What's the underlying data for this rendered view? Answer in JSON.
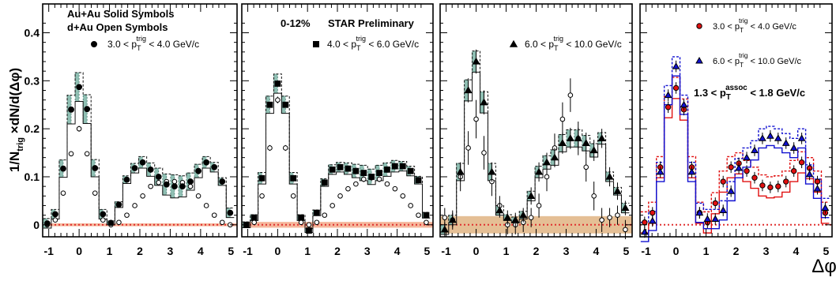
{
  "figure": {
    "y_axis_title": "1/N",
    "y_axis_title_sub": "trig",
    "y_axis_title_rest": " ×dN/d(Δφ)",
    "x_axis_title": "Δφ"
  },
  "colors": {
    "band_teal": "#8fbfb3",
    "band_orange": "#e0b483",
    "band_salmon": "#f3a98a",
    "zero_line": "#e03030",
    "red": "#e01010",
    "blue": "#1010d0",
    "black": "#000000"
  },
  "chart_data": [
    {
      "type": "scatter",
      "panel": 1,
      "xlim": [
        -1.2,
        5.2
      ],
      "ylim": [
        -0.025,
        0.46
      ],
      "yticks": [
        0,
        0.1,
        0.2,
        0.3,
        0.4
      ],
      "ytick_labels": [
        "0",
        "0.1",
        "0.2",
        "0.3",
        "0.4"
      ],
      "xticks": [
        -1,
        0,
        1,
        2,
        3,
        4,
        5
      ],
      "xtick_labels": [
        "-1",
        "0",
        "1",
        "2",
        "3",
        "4",
        "5"
      ],
      "texts": [
        "Au+Au Solid Symbols",
        "d+Au Open Symbols"
      ],
      "legend": {
        "symbol": "circle",
        "lo": "3.0",
        "hi": "4.0",
        "var": "p",
        "sub": "T",
        "sup": "trig",
        "unit": "GeV/c"
      },
      "x": [
        -1.047,
        -0.785,
        -0.524,
        -0.262,
        0.0,
        0.262,
        0.524,
        0.785,
        1.047,
        1.309,
        1.571,
        1.833,
        2.094,
        2.356,
        2.618,
        2.88,
        3.142,
        3.403,
        3.665,
        3.927,
        4.189,
        4.451,
        4.712,
        4.974
      ],
      "auau": [
        0.003,
        0.022,
        0.117,
        0.24,
        0.287,
        0.241,
        0.118,
        0.022,
        0.004,
        0.042,
        0.094,
        0.118,
        0.13,
        0.115,
        0.1,
        0.084,
        0.08,
        0.08,
        0.09,
        0.112,
        0.13,
        0.12,
        0.09,
        0.025
      ],
      "dau": [
        0.0,
        0.01,
        0.066,
        0.148,
        0.2,
        0.148,
        0.066,
        0.01,
        0.0,
        0.005,
        0.02,
        0.04,
        0.06,
        0.08,
        0.088,
        0.09,
        0.09,
        0.088,
        0.08,
        0.06,
        0.04,
        0.02,
        0.005,
        0.0
      ],
      "dau_errors": [
        0.004,
        0.004,
        0.005,
        0.005,
        0.006,
        0.005,
        0.005,
        0.004,
        0.004,
        0.004,
        0.004,
        0.004,
        0.005,
        0.005,
        0.005,
        0.005,
        0.005,
        0.005,
        0.005,
        0.005,
        0.004,
        0.004,
        0.004,
        0.004
      ],
      "sys_band": [
        0.01,
        0.01,
        0.018,
        0.03,
        0.03,
        0.03,
        0.018,
        0.01,
        0.004,
        0.006,
        0.008,
        0.01,
        0.012,
        0.014,
        0.018,
        0.022,
        0.024,
        0.022,
        0.018,
        0.014,
        0.012,
        0.01,
        0.008,
        0.01
      ],
      "zero_band": 0.003
    },
    {
      "type": "scatter",
      "panel": 2,
      "xlim": [
        -1.2,
        5.2
      ],
      "ylim": [
        -0.025,
        0.46
      ],
      "xticks": [
        -1,
        0,
        1,
        2,
        3,
        4,
        5
      ],
      "xtick_labels": [
        "-1",
        "0",
        "1",
        "2",
        "3",
        "4",
        "5"
      ],
      "texts": [
        "0-12%",
        "STAR Preliminary"
      ],
      "legend": {
        "symbol": "square",
        "lo": "4.0",
        "hi": "6.0",
        "var": "p",
        "sub": "T",
        "sup": "trig",
        "unit": "GeV/c"
      },
      "x": [
        -1.047,
        -0.785,
        -0.524,
        -0.262,
        0.0,
        0.262,
        0.524,
        0.785,
        1.047,
        1.309,
        1.571,
        1.833,
        2.094,
        2.356,
        2.618,
        2.88,
        3.142,
        3.403,
        3.665,
        3.927,
        4.189,
        4.451,
        4.712,
        4.974
      ],
      "auau": [
        0.0,
        0.015,
        0.097,
        0.25,
        0.294,
        0.25,
        0.097,
        0.015,
        -0.012,
        0.025,
        0.088,
        0.115,
        0.12,
        0.117,
        0.112,
        0.108,
        0.1,
        0.108,
        0.115,
        0.122,
        0.122,
        0.112,
        0.093,
        0.02
      ],
      "dau": [
        0.0,
        0.005,
        0.06,
        0.16,
        0.26,
        0.16,
        0.06,
        0.005,
        0.0,
        0.005,
        0.02,
        0.04,
        0.06,
        0.075,
        0.085,
        0.095,
        0.098,
        0.095,
        0.085,
        0.075,
        0.06,
        0.04,
        0.02,
        0.005
      ],
      "dau_errors": [
        0.004,
        0.004,
        0.005,
        0.006,
        0.007,
        0.006,
        0.005,
        0.004,
        0.004,
        0.004,
        0.004,
        0.005,
        0.005,
        0.005,
        0.005,
        0.006,
        0.006,
        0.006,
        0.005,
        0.005,
        0.005,
        0.004,
        0.004,
        0.004
      ],
      "sys_band": [
        0.006,
        0.006,
        0.012,
        0.018,
        0.02,
        0.018,
        0.012,
        0.006,
        0.004,
        0.006,
        0.008,
        0.01,
        0.01,
        0.012,
        0.014,
        0.016,
        0.016,
        0.016,
        0.014,
        0.012,
        0.01,
        0.01,
        0.008,
        0.006
      ],
      "zero_band": 0.006
    },
    {
      "type": "scatter",
      "panel": 3,
      "xlim": [
        -1.2,
        5.2
      ],
      "ylim": [
        -0.025,
        0.46
      ],
      "xticks": [
        -1,
        0,
        1,
        2,
        3,
        4,
        5
      ],
      "xtick_labels": [
        "-1",
        "0",
        "1",
        "2",
        "3",
        "4",
        "5"
      ],
      "texts": [],
      "legend": {
        "symbol": "triangle",
        "lo": "6.0",
        "hi": "10.0",
        "var": "p",
        "sub": "T",
        "sup": "trig",
        "unit": "GeV/c"
      },
      "x": [
        -1.047,
        -0.785,
        -0.524,
        -0.262,
        0.0,
        0.262,
        0.524,
        0.785,
        1.047,
        1.309,
        1.571,
        1.833,
        2.094,
        2.356,
        2.618,
        2.88,
        3.142,
        3.403,
        3.665,
        3.927,
        4.189,
        4.451,
        4.712,
        4.974
      ],
      "auau": [
        -0.01,
        0.01,
        0.11,
        0.28,
        0.34,
        0.255,
        0.11,
        0.03,
        0.015,
        0.01,
        0.02,
        0.06,
        0.11,
        0.13,
        0.14,
        0.17,
        0.18,
        0.18,
        0.17,
        0.155,
        0.18,
        0.1,
        0.07,
        0.035
      ],
      "dau": [
        0.015,
        0.01,
        0.1,
        0.16,
        0.22,
        0.15,
        0.09,
        0.04,
        0.0,
        0.0,
        0.005,
        0.015,
        0.04,
        0.1,
        0.16,
        0.22,
        0.27,
        0.18,
        0.12,
        0.06,
        0.01,
        0.015,
        0.02,
        -0.01
      ],
      "auau_errors": [
        0.015,
        0.015,
        0.02,
        0.025,
        0.025,
        0.025,
        0.02,
        0.015,
        0.015,
        0.015,
        0.015,
        0.018,
        0.02,
        0.02,
        0.02,
        0.022,
        0.022,
        0.022,
        0.022,
        0.022,
        0.02,
        0.02,
        0.018,
        0.015
      ],
      "dau_errors": [
        0.02,
        0.02,
        0.03,
        0.035,
        0.04,
        0.035,
        0.03,
        0.02,
        0.02,
        0.02,
        0.02,
        0.02,
        0.025,
        0.03,
        0.03,
        0.035,
        0.035,
        0.035,
        0.03,
        0.03,
        0.025,
        0.02,
        0.02,
        0.02
      ],
      "sys_band": [
        0.01,
        0.01,
        0.018,
        0.022,
        0.022,
        0.022,
        0.018,
        0.01,
        0.006,
        0.006,
        0.008,
        0.01,
        0.012,
        0.014,
        0.016,
        0.018,
        0.018,
        0.018,
        0.016,
        0.014,
        0.012,
        0.01,
        0.008,
        0.01
      ],
      "zero_band": 0.018
    },
    {
      "type": "line",
      "panel": 4,
      "xlim": [
        -1.2,
        5.2
      ],
      "ylim": [
        -0.025,
        0.46
      ],
      "xticks": [
        -1,
        0,
        1,
        2,
        3,
        4,
        5
      ],
      "xtick_labels": [
        "-1",
        "0",
        "1",
        "2",
        "3",
        "4",
        "5"
      ],
      "legend_entries": [
        {
          "symbol": "circle",
          "color": "red",
          "lo": "3.0",
          "hi": "4.0",
          "var": "p",
          "sub": "T",
          "sup": "trig",
          "unit": "GeV/c"
        },
        {
          "symbol": "triangle",
          "color": "blue",
          "lo": "6.0",
          "hi": "10.0",
          "var": "p",
          "sub": "T",
          "sup": "trig",
          "unit": "GeV/c"
        }
      ],
      "assoc_label": {
        "lo": "1.3",
        "hi": "1.8",
        "var": "p",
        "sub": "T",
        "sup": "assoc",
        "unit": "GeV/c"
      },
      "x": [
        -1.047,
        -0.785,
        -0.524,
        -0.262,
        0.0,
        0.262,
        0.524,
        0.785,
        1.047,
        1.309,
        1.571,
        1.833,
        2.094,
        2.356,
        2.618,
        2.88,
        3.142,
        3.403,
        3.665,
        3.927,
        4.189,
        4.451,
        4.712,
        4.974
      ],
      "series": [
        {
          "color": "red",
          "symbol": "circle",
          "values": [
            0.005,
            0.025,
            0.12,
            0.245,
            0.285,
            0.24,
            0.12,
            0.025,
            0.005,
            0.045,
            0.09,
            0.12,
            0.128,
            0.112,
            0.098,
            0.082,
            0.078,
            0.08,
            0.09,
            0.112,
            0.13,
            0.118,
            0.09,
            0.025
          ]
        },
        {
          "color": "blue",
          "symbol": "triangle",
          "values": [
            -0.015,
            0.008,
            0.11,
            0.27,
            0.33,
            0.25,
            0.11,
            0.025,
            0.012,
            0.012,
            0.03,
            0.07,
            0.118,
            0.14,
            0.155,
            0.18,
            0.185,
            0.18,
            0.17,
            0.16,
            0.18,
            0.105,
            0.075,
            0.035
          ]
        }
      ]
    }
  ]
}
